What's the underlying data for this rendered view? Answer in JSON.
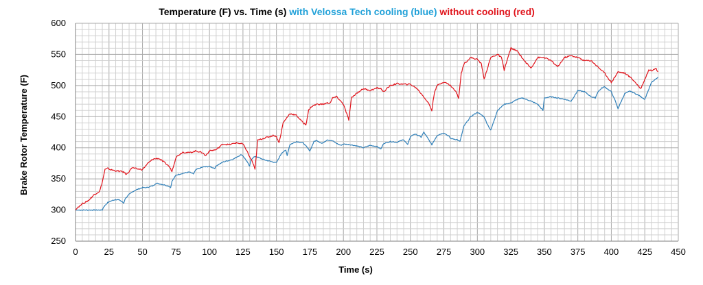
{
  "chart_data": {
    "type": "line",
    "title_parts": [
      {
        "text": "Temperature (F)  vs. Time (s) ",
        "color": "#000000"
      },
      {
        "text": "with Velossa Tech cooling (blue) ",
        "color": "#1fa0d8"
      },
      {
        "text": "without cooling (red)",
        "color": "#e0141c"
      }
    ],
    "xlabel": "Time (s)",
    "ylabel": "Brake Rotor Temperature (F)",
    "xlim": [
      0,
      450
    ],
    "ylim": [
      250,
      600
    ],
    "x_ticks": [
      "0",
      "25",
      "50",
      "75",
      "100",
      "125",
      "150",
      "175",
      "200",
      "225",
      "250",
      "275",
      "300",
      "325",
      "350",
      "375",
      "400",
      "425",
      "450"
    ],
    "y_ticks": [
      "250",
      "300",
      "350",
      "400",
      "450",
      "500",
      "550",
      "600"
    ],
    "grid": true,
    "legend": "none",
    "colors": {
      "blue": "#2f7fb8",
      "red": "#e0141c",
      "grid": "#c8c8c8"
    },
    "series": [
      {
        "key": "blue",
        "x": [
          0,
          10,
          15,
          20,
          21,
          24,
          27,
          30,
          33,
          36,
          37,
          40,
          43,
          46,
          50,
          53,
          56,
          58,
          60,
          63,
          67,
          70,
          71,
          72,
          75,
          80,
          85,
          88,
          90,
          95,
          100,
          104,
          105,
          110,
          115,
          118,
          121,
          124,
          125,
          128,
          130,
          131,
          133,
          135,
          138,
          142,
          146,
          150,
          154,
          157,
          158,
          160,
          165,
          170,
          175,
          178,
          180,
          184,
          188,
          192,
          195,
          198,
          200,
          205,
          210,
          215,
          220,
          225,
          228,
          230,
          235,
          240,
          245,
          248,
          250,
          253,
          256,
          258,
          260,
          264,
          266,
          270,
          275,
          279,
          280,
          285,
          287,
          290,
          295,
          300,
          305,
          307,
          310,
          315,
          320,
          325,
          330,
          334,
          335,
          340,
          345,
          349,
          350,
          355,
          360,
          365,
          370,
          373,
          375,
          380,
          385,
          388,
          390,
          393,
          395,
          400,
          403,
          405,
          410,
          414,
          415,
          420,
          425,
          430,
          435
        ],
        "values": [
          300,
          300,
          300,
          300,
          305,
          312,
          315,
          317,
          316,
          311,
          318,
          325,
          330,
          333,
          336,
          336,
          338,
          339,
          343,
          342,
          340,
          338,
          336,
          346,
          356,
          359,
          361,
          358,
          365,
          369,
          370,
          367,
          371,
          377,
          380,
          382,
          386,
          389,
          387,
          378,
          370,
          381,
          385,
          386,
          383,
          380,
          378,
          376,
          392,
          396,
          388,
          405,
          410,
          408,
          395,
          410,
          412,
          407,
          413,
          411,
          407,
          404,
          406,
          405,
          403,
          400,
          404,
          402,
          398,
          407,
          410,
          409,
          413,
          405,
          418,
          422,
          420,
          417,
          425,
          412,
          405,
          420,
          424,
          418,
          415,
          413,
          410,
          435,
          450,
          457,
          450,
          440,
          428,
          460,
          470,
          472,
          478,
          480,
          479,
          475,
          470,
          460,
          480,
          482,
          480,
          478,
          475,
          485,
          492,
          490,
          482,
          480,
          490,
          496,
          498,
          490,
          475,
          463,
          487,
          491,
          490,
          485,
          478,
          505,
          513
        ]
      },
      {
        "key": "red",
        "x": [
          0,
          2,
          5,
          8,
          10,
          14,
          18,
          20,
          22,
          24,
          26,
          30,
          34,
          36,
          38,
          40,
          42,
          46,
          50,
          54,
          58,
          62,
          66,
          70,
          72,
          75,
          80,
          85,
          90,
          95,
          97,
          100,
          105,
          110,
          115,
          120,
          125,
          128,
          130,
          132,
          134,
          136,
          140,
          145,
          148,
          150,
          152,
          155,
          160,
          165,
          170,
          172,
          174,
          176,
          180,
          185,
          188,
          190,
          192,
          195,
          200,
          204,
          206,
          210,
          215,
          220,
          225,
          228,
          230,
          235,
          240,
          245,
          250,
          255,
          260,
          264,
          266,
          268,
          270,
          275,
          280,
          284,
          286,
          288,
          290,
          295,
          300,
          303,
          305,
          310,
          315,
          318,
          320,
          325,
          330,
          335,
          340,
          345,
          350,
          355,
          360,
          365,
          370,
          375,
          380,
          385,
          390,
          395,
          400,
          403,
          405,
          410,
          415,
          420,
          422,
          425,
          428,
          430,
          433,
          435
        ],
        "values": [
          300,
          305,
          310,
          313,
          316,
          325,
          330,
          345,
          365,
          367,
          365,
          363,
          362,
          361,
          357,
          362,
          368,
          366,
          365,
          375,
          382,
          383,
          377,
          370,
          362,
          385,
          393,
          392,
          395,
          392,
          387,
          395,
          397,
          406,
          405,
          408,
          406,
          395,
          385,
          378,
          365,
          412,
          415,
          418,
          420,
          418,
          408,
          440,
          455,
          452,
          440,
          437,
          460,
          466,
          470,
          470,
          472,
          472,
          480,
          482,
          470,
          445,
          480,
          488,
          495,
          492,
          496,
          495,
          490,
          500,
          503,
          502,
          502,
          495,
          482,
          470,
          460,
          490,
          500,
          506,
          500,
          490,
          480,
          520,
          535,
          545,
          542,
          535,
          510,
          545,
          550,
          545,
          525,
          560,
          555,
          540,
          528,
          545,
          545,
          540,
          530,
          545,
          548,
          545,
          540,
          540,
          530,
          520,
          505,
          515,
          522,
          520,
          512,
          500,
          495,
          510,
          525,
          524,
          528,
          522
        ]
      }
    ]
  }
}
